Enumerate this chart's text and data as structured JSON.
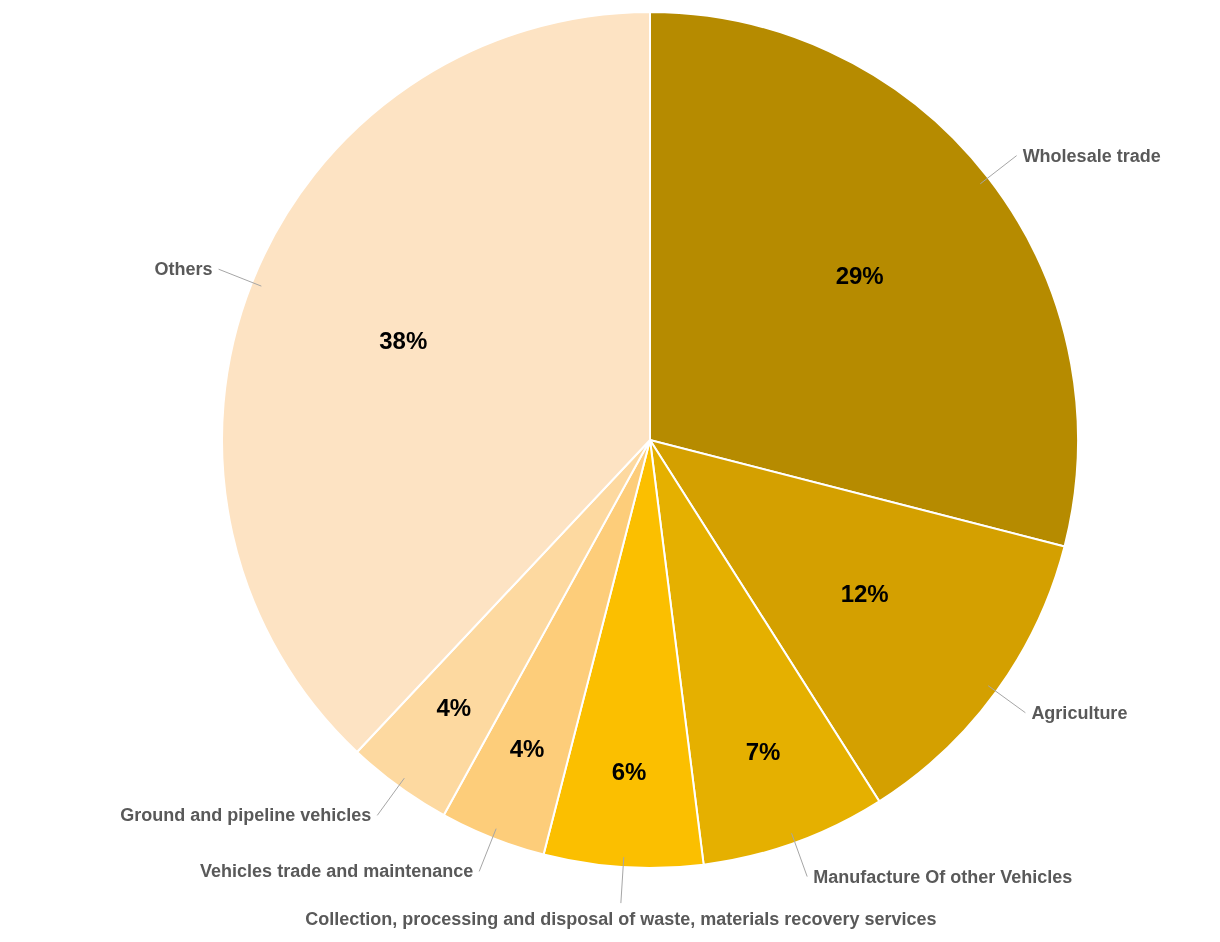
{
  "chart_data": {
    "type": "pie",
    "categories": [
      "Wholesale trade",
      "Agriculture",
      "Manufacture Of other Vehicles",
      "Collection, processing and disposal of waste, materials recovery services",
      "Vehicles trade and maintenance",
      "Ground and pipeline vehicles",
      "Others"
    ],
    "values": [
      29,
      12,
      7,
      6,
      4,
      4,
      38
    ],
    "value_labels": [
      "29%",
      "12%",
      "7%",
      "6%",
      "4%",
      "4%",
      "38%"
    ],
    "colors": [
      "#b68b00",
      "#d4a000",
      "#e5b000",
      "#fbbf00",
      "#fdcd7a",
      "#fdd9a0",
      "#fde3c3"
    ]
  }
}
